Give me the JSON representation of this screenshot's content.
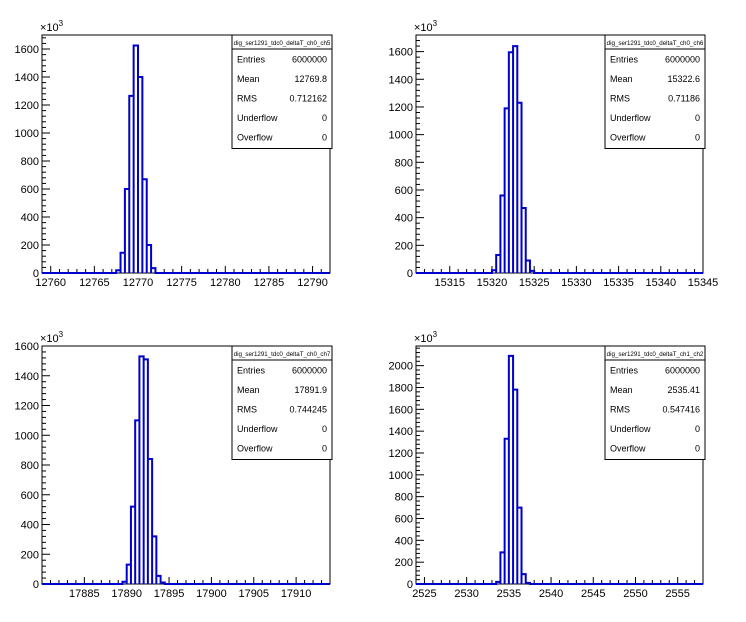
{
  "exponent_label": "×10",
  "exponent_power": "3",
  "colors": {
    "line": "#0000cc",
    "axis": "#000000",
    "box": "#000000"
  },
  "chart_data": [
    {
      "type": "histogram",
      "xlim": [
        12759,
        12792
      ],
      "ylim": [
        0,
        1700
      ],
      "xticks": [
        12760,
        12765,
        12770,
        12775,
        12780,
        12785,
        12790
      ],
      "yticks": [
        0,
        200,
        400,
        600,
        800,
        1000,
        1200,
        1400,
        1600
      ],
      "bin_width": 0.5,
      "bins": [
        {
          "x": 12767.5,
          "y": 20
        },
        {
          "x": 12768.0,
          "y": 145
        },
        {
          "x": 12768.5,
          "y": 600
        },
        {
          "x": 12769.0,
          "y": 1265
        },
        {
          "x": 12769.5,
          "y": 1625
        },
        {
          "x": 12770.0,
          "y": 1400
        },
        {
          "x": 12770.5,
          "y": 670
        },
        {
          "x": 12771.0,
          "y": 200
        },
        {
          "x": 12771.5,
          "y": 35
        }
      ],
      "stats": {
        "title": "dig_ser1291_tdc0_deltaT_ch0_ch5",
        "rows": [
          {
            "label": "Entries",
            "value": "6000000"
          },
          {
            "label": "Mean",
            "value": "12769.8"
          },
          {
            "label": "RMS",
            "value": "0.712162"
          },
          {
            "label": "Underflow",
            "value": "0"
          },
          {
            "label": "Overflow",
            "value": "0"
          }
        ]
      }
    },
    {
      "type": "histogram",
      "xlim": [
        15311,
        15345
      ],
      "ylim": [
        0,
        1720
      ],
      "xticks": [
        15315,
        15320,
        15325,
        15330,
        15335,
        15340,
        15345
      ],
      "yticks": [
        0,
        200,
        400,
        600,
        800,
        1000,
        1200,
        1400,
        1600
      ],
      "bin_width": 0.5,
      "bins": [
        {
          "x": 15320.0,
          "y": 20
        },
        {
          "x": 15320.5,
          "y": 130
        },
        {
          "x": 15321.0,
          "y": 560
        },
        {
          "x": 15321.5,
          "y": 1190
        },
        {
          "x": 15322.0,
          "y": 1595
        },
        {
          "x": 15322.5,
          "y": 1640
        },
        {
          "x": 15323.0,
          "y": 1230
        },
        {
          "x": 15323.5,
          "y": 470
        },
        {
          "x": 15324.0,
          "y": 90
        },
        {
          "x": 15324.5,
          "y": 15
        }
      ],
      "stats": {
        "title": "dig_ser1291_tdc0_deltaT_ch0_ch6",
        "rows": [
          {
            "label": "Entries",
            "value": "6000000"
          },
          {
            "label": "Mean",
            "value": "15322.6"
          },
          {
            "label": "RMS",
            "value": "0.71186"
          },
          {
            "label": "Underflow",
            "value": "0"
          },
          {
            "label": "Overflow",
            "value": "0"
          }
        ]
      }
    },
    {
      "type": "histogram",
      "xlim": [
        17880,
        17914
      ],
      "ylim": [
        0,
        1600
      ],
      "xticks": [
        17885,
        17890,
        17895,
        17900,
        17905,
        17910
      ],
      "yticks": [
        0,
        200,
        400,
        600,
        800,
        1000,
        1200,
        1400,
        1600
      ],
      "bin_width": 0.5,
      "bins": [
        {
          "x": 17889.5,
          "y": 15
        },
        {
          "x": 17890.0,
          "y": 130
        },
        {
          "x": 17890.5,
          "y": 520
        },
        {
          "x": 17891.0,
          "y": 1100
        },
        {
          "x": 17891.5,
          "y": 1530
        },
        {
          "x": 17892.0,
          "y": 1510
        },
        {
          "x": 17892.5,
          "y": 840
        },
        {
          "x": 17893.0,
          "y": 320
        },
        {
          "x": 17893.5,
          "y": 55
        },
        {
          "x": 17894.0,
          "y": 10
        }
      ],
      "stats": {
        "title": "dig_ser1291_tdc0_deltaT_ch0_ch7",
        "rows": [
          {
            "label": "Entries",
            "value": "6000000"
          },
          {
            "label": "Mean",
            "value": "17891.9"
          },
          {
            "label": "RMS",
            "value": "0.744245"
          },
          {
            "label": "Underflow",
            "value": "0"
          },
          {
            "label": "Overflow",
            "value": "0"
          }
        ]
      }
    },
    {
      "type": "histogram",
      "xlim": [
        2524,
        2558
      ],
      "ylim": [
        0,
        2180
      ],
      "xticks": [
        2525,
        2530,
        2535,
        2540,
        2545,
        2550,
        2555
      ],
      "yticks": [
        0,
        200,
        400,
        600,
        800,
        1000,
        1200,
        1400,
        1600,
        1800,
        2000
      ],
      "bin_width": 0.5,
      "bins": [
        {
          "x": 2533.5,
          "y": 20
        },
        {
          "x": 2534.0,
          "y": 290
        },
        {
          "x": 2534.5,
          "y": 1330
        },
        {
          "x": 2535.0,
          "y": 2090
        },
        {
          "x": 2535.5,
          "y": 1780
        },
        {
          "x": 2536.0,
          "y": 700
        },
        {
          "x": 2536.5,
          "y": 90
        },
        {
          "x": 2537.0,
          "y": 10
        }
      ],
      "stats": {
        "title": "dig_ser1291_tdc0_deltaT_ch1_ch2",
        "rows": [
          {
            "label": "Entries",
            "value": "6000000"
          },
          {
            "label": "Mean",
            "value": "2535.41"
          },
          {
            "label": "RMS",
            "value": "0.547416"
          },
          {
            "label": "Underflow",
            "value": "0"
          },
          {
            "label": "Overflow",
            "value": "0"
          }
        ]
      }
    }
  ]
}
